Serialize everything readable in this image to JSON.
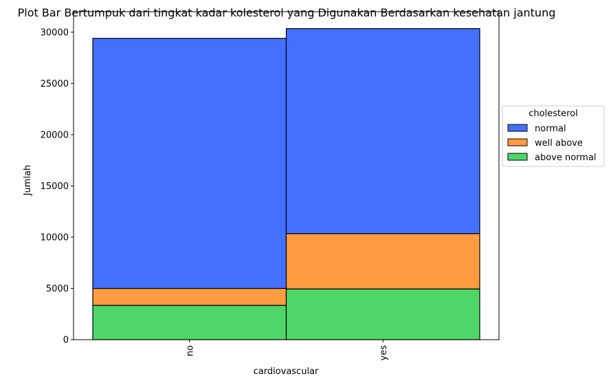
{
  "chart_data": {
    "type": "bar",
    "stacked": true,
    "title": "Plot Bar Bertumpuk dari tingkat kadar kolesterol yang Digunakan Berdasarkan kesehatan jantung",
    "xlabel": "cardiovascular",
    "ylabel": "Jumlah",
    "categories": [
      "no",
      "yes"
    ],
    "ylim": [
      0,
      32000
    ],
    "yticks": [
      0,
      5000,
      10000,
      15000,
      20000,
      25000,
      30000
    ],
    "grid": false,
    "legend": {
      "title": "cholesterol",
      "placement": "right"
    },
    "series": [
      {
        "name": "above normal",
        "color": "#4fd66a",
        "values": [
          3350,
          4950
        ]
      },
      {
        "name": "well above",
        "color": "#ff9b41",
        "values": [
          1650,
          5400
        ]
      },
      {
        "name": "normal",
        "color": "#4470ff",
        "values": [
          24400,
          20000
        ]
      }
    ],
    "legend_order": [
      "normal",
      "well above",
      "above normal"
    ]
  }
}
